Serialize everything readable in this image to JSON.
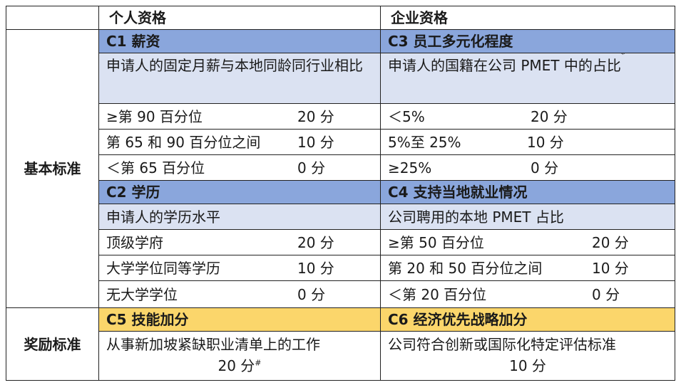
{
  "header": {
    "individual": "个人资格",
    "company": "企业资格"
  },
  "labels": {
    "basic": "基本标准",
    "bonus": "奖励标准"
  },
  "c1": {
    "title": "C1 薪资",
    "desc": "申请人的固定月薪与本地同龄同行业相比",
    "rows": [
      {
        "label": "≥第 90 百分位",
        "points": "20 分"
      },
      {
        "label": "第 65 和 90 百分位之间",
        "points": "10 分"
      },
      {
        "label": "＜第 65 百分位",
        "points": "0 分"
      }
    ]
  },
  "c3": {
    "title": "C3 员工多元化程度",
    "desc": "申请人的国籍在公司 PMET 中的占比",
    "desc_mark": "*",
    "rows": [
      {
        "label": "＜5%",
        "points": "20 分"
      },
      {
        "label": "5%至 25%",
        "points": "10 分"
      },
      {
        "label": "≥25%",
        "points": "0 分"
      }
    ]
  },
  "c2": {
    "title": "C2 学历",
    "desc": "申请人的学历水平",
    "rows": [
      {
        "label": "顶级学府",
        "points": "20 分"
      },
      {
        "label": "大学学位同等学历",
        "points": "10 分"
      },
      {
        "label": "无大学学位",
        "points": "0 分"
      }
    ]
  },
  "c4": {
    "title": "C4 支持当地就业情况",
    "desc": "公司聘用的本地 PMET 占比",
    "rows": [
      {
        "label": "≥第 50 百分位",
        "points": "20 分"
      },
      {
        "label": "第 20 和 50 百分位之间",
        "points": "10 分"
      },
      {
        "label": "＜第 20 百分位",
        "points": "0 分"
      }
    ]
  },
  "c5": {
    "title": "C5 技能加分",
    "desc": "从事新加坡紧缺职业清单上的工作",
    "points": "20 分",
    "mark": "#"
  },
  "c6": {
    "title": "C6 经济优先战略加分",
    "desc": "公司符合创新或国际化特定评估标准",
    "points": "10 分"
  },
  "colors": {
    "title_blue": "#8aa6dc",
    "desc_blue": "#dbe2f2",
    "bonus_gold": "#fbd66b"
  }
}
